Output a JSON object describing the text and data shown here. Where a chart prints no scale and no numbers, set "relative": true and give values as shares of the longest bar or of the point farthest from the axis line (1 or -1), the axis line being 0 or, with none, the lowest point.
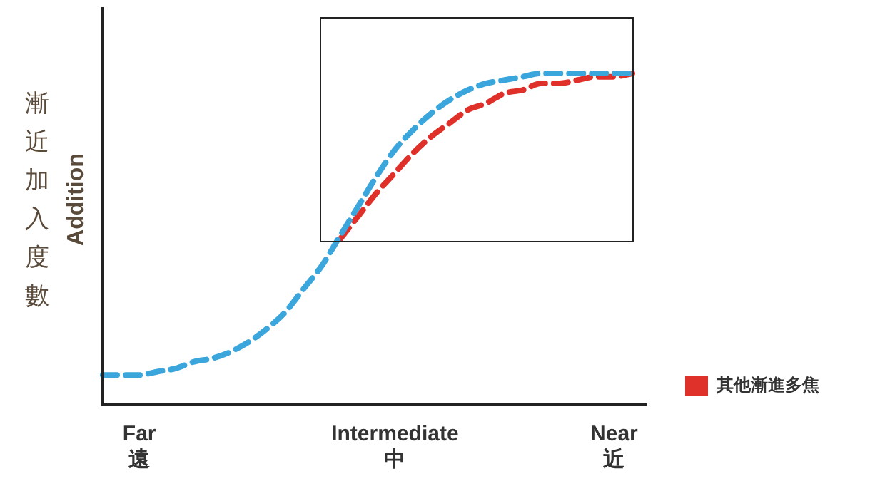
{
  "chart_data": {
    "type": "line",
    "relative": true,
    "ylabel": "漸近加入度數\nAddition",
    "categories": [
      null,
      null,
      "Far\n遠",
      null,
      null,
      null,
      null,
      null,
      null,
      null,
      null,
      null,
      null,
      null,
      null,
      null,
      "Intermediate\n中",
      null,
      null,
      null,
      null,
      null,
      null,
      null,
      null,
      null,
      null,
      null,
      "Near\n近",
      null
    ],
    "series": [
      {
        "color": "#3aa6dc",
        "values": [
          0.09,
          0.09,
          0.09,
          0.1,
          0.11,
          0.13,
          0.14,
          0.16,
          0.19,
          0.23,
          0.28,
          0.35,
          0.42,
          0.51,
          0.6,
          0.69,
          0.77,
          0.83,
          0.88,
          0.92,
          0.95,
          0.97,
          0.98,
          0.99,
          1.0,
          1.0,
          1.0,
          1.0,
          1.0,
          1.0
        ]
      },
      {
        "name": "其他漸進多焦",
        "color": "#e0302a",
        "values": [
          null,
          null,
          null,
          null,
          null,
          null,
          null,
          null,
          null,
          null,
          null,
          null,
          null,
          0.5,
          0.57,
          0.64,
          0.7,
          0.76,
          0.81,
          0.85,
          0.89,
          0.91,
          0.94,
          0.95,
          0.97,
          0.97,
          0.98,
          0.99,
          0.99,
          1.0
        ]
      }
    ],
    "line_style": "dashed",
    "grid": false,
    "legend": "right"
  }
}
